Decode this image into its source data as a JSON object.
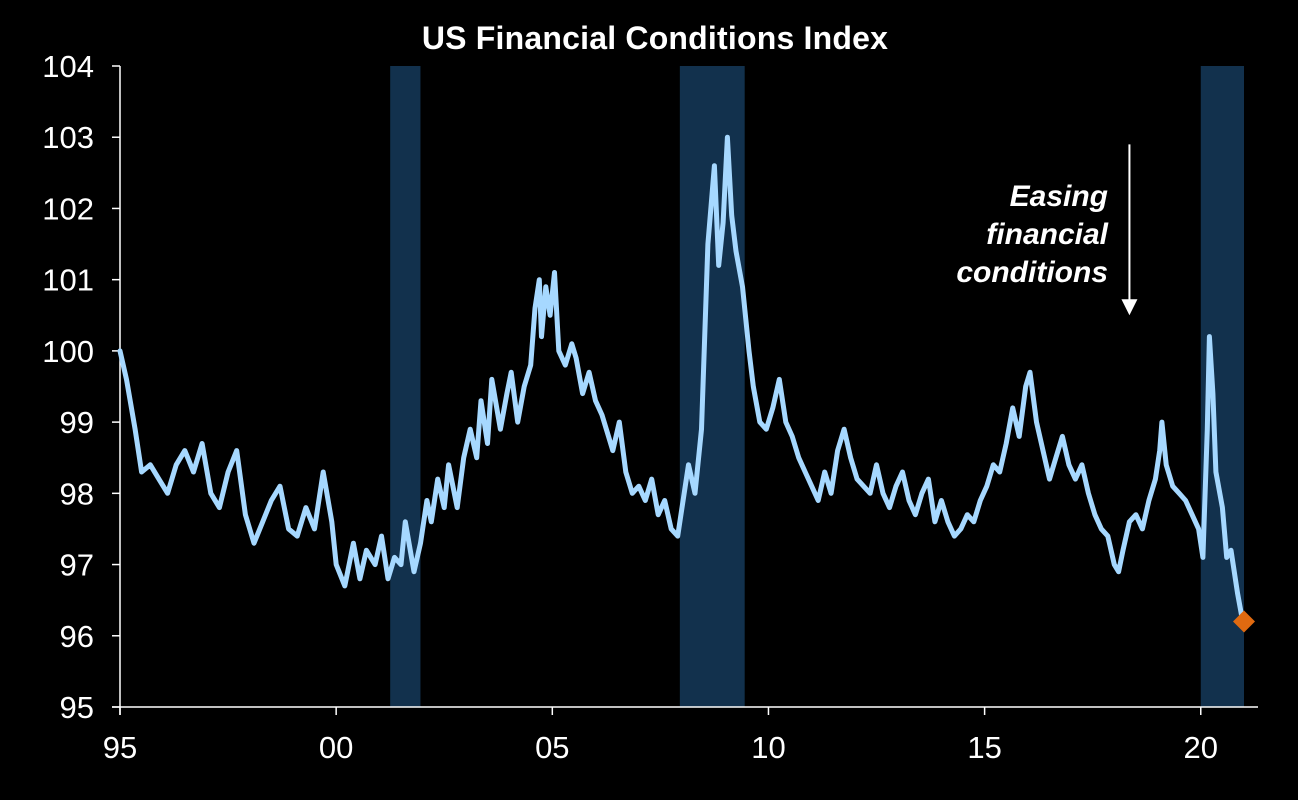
{
  "chart_data": {
    "type": "line",
    "title": "US Financial Conditions Index",
    "xlabel": "",
    "ylabel": "",
    "xlim": [
      1995,
      2021.0
    ],
    "ylim": [
      95,
      104
    ],
    "x_tick_values": [
      1995,
      2000,
      2005,
      2010,
      2015,
      2020
    ],
    "x_tick_labels": [
      "95",
      "00",
      "05",
      "10",
      "15",
      "20"
    ],
    "y_ticks": [
      95,
      96,
      97,
      98,
      99,
      100,
      101,
      102,
      103,
      104
    ],
    "grid": false,
    "recessions": [
      {
        "start": 2001.25,
        "end": 2001.95
      },
      {
        "start": 2007.95,
        "end": 2009.45
      },
      {
        "start": 2020.0,
        "end": 2021.0
      }
    ],
    "series": [
      {
        "name": "US Financial Conditions Index",
        "color": "#a6d8ff",
        "points": [
          [
            1995.0,
            100.0
          ],
          [
            1995.15,
            99.6
          ],
          [
            1995.35,
            98.9
          ],
          [
            1995.5,
            98.3
          ],
          [
            1995.7,
            98.4
          ],
          [
            1995.9,
            98.2
          ],
          [
            1996.1,
            98.0
          ],
          [
            1996.3,
            98.4
          ],
          [
            1996.5,
            98.6
          ],
          [
            1996.7,
            98.3
          ],
          [
            1996.9,
            98.7
          ],
          [
            1997.1,
            98.0
          ],
          [
            1997.3,
            97.8
          ],
          [
            1997.5,
            98.3
          ],
          [
            1997.7,
            98.6
          ],
          [
            1997.9,
            97.7
          ],
          [
            1998.1,
            97.3
          ],
          [
            1998.3,
            97.6
          ],
          [
            1998.5,
            97.9
          ],
          [
            1998.7,
            98.1
          ],
          [
            1998.9,
            97.5
          ],
          [
            1999.1,
            97.4
          ],
          [
            1999.3,
            97.8
          ],
          [
            1999.5,
            97.5
          ],
          [
            1999.7,
            98.3
          ],
          [
            1999.9,
            97.6
          ],
          [
            2000.0,
            97.0
          ],
          [
            2000.2,
            96.7
          ],
          [
            2000.4,
            97.3
          ],
          [
            2000.55,
            96.8
          ],
          [
            2000.7,
            97.2
          ],
          [
            2000.9,
            97.0
          ],
          [
            2001.05,
            97.4
          ],
          [
            2001.2,
            96.8
          ],
          [
            2001.35,
            97.1
          ],
          [
            2001.5,
            97.0
          ],
          [
            2001.6,
            97.6
          ],
          [
            2001.8,
            96.9
          ],
          [
            2001.95,
            97.3
          ],
          [
            2002.1,
            97.9
          ],
          [
            2002.2,
            97.6
          ],
          [
            2002.35,
            98.2
          ],
          [
            2002.5,
            97.8
          ],
          [
            2002.6,
            98.4
          ],
          [
            2002.8,
            97.8
          ],
          [
            2002.95,
            98.5
          ],
          [
            2003.1,
            98.9
          ],
          [
            2003.25,
            98.5
          ],
          [
            2003.35,
            99.3
          ],
          [
            2003.5,
            98.7
          ],
          [
            2003.6,
            99.6
          ],
          [
            2003.8,
            98.9
          ],
          [
            2003.95,
            99.4
          ],
          [
            2004.05,
            99.7
          ],
          [
            2004.2,
            99.0
          ],
          [
            2004.35,
            99.5
          ],
          [
            2004.5,
            99.8
          ],
          [
            2004.6,
            100.6
          ],
          [
            2004.7,
            101.0
          ],
          [
            2004.75,
            100.2
          ],
          [
            2004.85,
            100.9
          ],
          [
            2004.95,
            100.5
          ],
          [
            2005.05,
            101.1
          ],
          [
            2005.15,
            100.0
          ],
          [
            2005.3,
            99.8
          ],
          [
            2005.45,
            100.1
          ],
          [
            2005.55,
            99.9
          ],
          [
            2005.7,
            99.4
          ],
          [
            2005.85,
            99.7
          ],
          [
            2006.0,
            99.3
          ],
          [
            2006.15,
            99.1
          ],
          [
            2006.3,
            98.8
          ],
          [
            2006.4,
            98.6
          ],
          [
            2006.55,
            99.0
          ],
          [
            2006.7,
            98.3
          ],
          [
            2006.85,
            98.0
          ],
          [
            2007.0,
            98.1
          ],
          [
            2007.15,
            97.9
          ],
          [
            2007.3,
            98.2
          ],
          [
            2007.45,
            97.7
          ],
          [
            2007.6,
            97.9
          ],
          [
            2007.75,
            97.5
          ],
          [
            2007.9,
            97.4
          ],
          [
            2008.0,
            97.8
          ],
          [
            2008.15,
            98.4
          ],
          [
            2008.3,
            98.0
          ],
          [
            2008.45,
            98.9
          ],
          [
            2008.6,
            101.5
          ],
          [
            2008.75,
            102.6
          ],
          [
            2008.85,
            101.2
          ],
          [
            2008.95,
            101.8
          ],
          [
            2009.05,
            103.0
          ],
          [
            2009.15,
            101.9
          ],
          [
            2009.25,
            101.4
          ],
          [
            2009.4,
            100.9
          ],
          [
            2009.55,
            100.0
          ],
          [
            2009.65,
            99.5
          ],
          [
            2009.8,
            99.0
          ],
          [
            2009.95,
            98.9
          ],
          [
            2010.1,
            99.2
          ],
          [
            2010.25,
            99.6
          ],
          [
            2010.4,
            99.0
          ],
          [
            2010.55,
            98.8
          ],
          [
            2010.7,
            98.5
          ],
          [
            2010.85,
            98.3
          ],
          [
            2011.0,
            98.1
          ],
          [
            2011.15,
            97.9
          ],
          [
            2011.3,
            98.3
          ],
          [
            2011.45,
            98.0
          ],
          [
            2011.6,
            98.6
          ],
          [
            2011.75,
            98.9
          ],
          [
            2011.9,
            98.5
          ],
          [
            2012.05,
            98.2
          ],
          [
            2012.2,
            98.1
          ],
          [
            2012.35,
            98.0
          ],
          [
            2012.5,
            98.4
          ],
          [
            2012.65,
            98.0
          ],
          [
            2012.8,
            97.8
          ],
          [
            2012.95,
            98.1
          ],
          [
            2013.1,
            98.3
          ],
          [
            2013.25,
            97.9
          ],
          [
            2013.4,
            97.7
          ],
          [
            2013.55,
            98.0
          ],
          [
            2013.7,
            98.2
          ],
          [
            2013.85,
            97.6
          ],
          [
            2014.0,
            97.9
          ],
          [
            2014.15,
            97.6
          ],
          [
            2014.3,
            97.4
          ],
          [
            2014.45,
            97.5
          ],
          [
            2014.6,
            97.7
          ],
          [
            2014.75,
            97.6
          ],
          [
            2014.9,
            97.9
          ],
          [
            2015.05,
            98.1
          ],
          [
            2015.2,
            98.4
          ],
          [
            2015.35,
            98.3
          ],
          [
            2015.5,
            98.7
          ],
          [
            2015.65,
            99.2
          ],
          [
            2015.8,
            98.8
          ],
          [
            2015.95,
            99.5
          ],
          [
            2016.05,
            99.7
          ],
          [
            2016.2,
            99.0
          ],
          [
            2016.35,
            98.6
          ],
          [
            2016.5,
            98.2
          ],
          [
            2016.65,
            98.5
          ],
          [
            2016.8,
            98.8
          ],
          [
            2016.95,
            98.4
          ],
          [
            2017.1,
            98.2
          ],
          [
            2017.25,
            98.4
          ],
          [
            2017.4,
            98.0
          ],
          [
            2017.55,
            97.7
          ],
          [
            2017.7,
            97.5
          ],
          [
            2017.85,
            97.4
          ],
          [
            2018.0,
            97.0
          ],
          [
            2018.1,
            96.9
          ],
          [
            2018.2,
            97.2
          ],
          [
            2018.35,
            97.6
          ],
          [
            2018.5,
            97.7
          ],
          [
            2018.65,
            97.5
          ],
          [
            2018.8,
            97.9
          ],
          [
            2018.95,
            98.2
          ],
          [
            2019.05,
            98.6
          ],
          [
            2019.1,
            99.0
          ],
          [
            2019.2,
            98.4
          ],
          [
            2019.35,
            98.1
          ],
          [
            2019.5,
            98.0
          ],
          [
            2019.65,
            97.9
          ],
          [
            2019.8,
            97.7
          ],
          [
            2019.95,
            97.5
          ],
          [
            2020.05,
            97.1
          ],
          [
            2020.15,
            98.9
          ],
          [
            2020.2,
            100.2
          ],
          [
            2020.28,
            99.4
          ],
          [
            2020.35,
            98.3
          ],
          [
            2020.5,
            97.8
          ],
          [
            2020.6,
            97.1
          ],
          [
            2020.7,
            97.2
          ],
          [
            2020.85,
            96.6
          ],
          [
            2020.97,
            96.2
          ]
        ]
      }
    ],
    "latest_point": {
      "x": 2021.0,
      "y": 96.2,
      "color": "#e06a10"
    },
    "annotation": {
      "lines": [
        "Easing",
        "financial",
        "conditions"
      ],
      "arrow_from_y": 102.9,
      "arrow_to_y": 100.5,
      "arrow_x": 2018.35
    }
  },
  "colors": {
    "background": "#000000",
    "recession_shade": "#12314d",
    "axis": "#ffffff",
    "text": "#ffffff"
  }
}
